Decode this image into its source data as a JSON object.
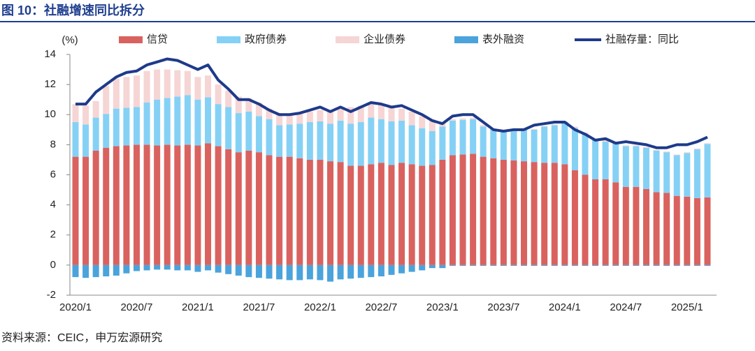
{
  "chart_data": {
    "type": "bar",
    "title": "图 10：社融增速同比拆分",
    "source": "资料来源：CEIC，申万宏源研究",
    "y_label": "(%)",
    "categories": [
      "2020/1",
      null,
      null,
      null,
      null,
      null,
      "2020/7",
      null,
      null,
      null,
      null,
      null,
      "2021/1",
      null,
      null,
      null,
      null,
      null,
      "2021/7",
      null,
      null,
      null,
      null,
      null,
      "2022/1",
      null,
      null,
      null,
      null,
      null,
      "2022/7",
      null,
      null,
      null,
      null,
      null,
      "2023/1",
      null,
      null,
      null,
      null,
      null,
      "2023/7",
      null,
      null,
      null,
      null,
      null,
      "2024/1",
      null,
      null,
      null,
      null,
      null,
      "2024/7",
      null,
      null,
      null,
      null,
      null,
      "2025/1",
      null,
      null
    ],
    "series": [
      {
        "name": "信贷",
        "color": "#d9625f",
        "values": [
          7.2,
          7.2,
          7.6,
          7.8,
          7.9,
          7.95,
          8.0,
          8.0,
          7.95,
          8.0,
          7.95,
          8.0,
          7.95,
          8.1,
          7.9,
          7.7,
          7.5,
          7.6,
          7.5,
          7.3,
          7.2,
          7.2,
          7.1,
          7.0,
          7.0,
          6.9,
          6.85,
          6.6,
          6.6,
          6.7,
          6.8,
          6.65,
          6.8,
          6.7,
          6.6,
          6.65,
          7.0,
          7.3,
          7.35,
          7.4,
          7.2,
          7.1,
          7.0,
          6.95,
          6.9,
          6.85,
          6.8,
          6.8,
          6.7,
          6.3,
          6.0,
          5.7,
          5.7,
          5.5,
          5.2,
          5.2,
          5.05,
          4.85,
          4.8,
          4.6,
          4.55,
          4.45,
          4.5
        ]
      },
      {
        "name": "政府债券",
        "color": "#85d1f5",
        "values": [
          2.3,
          2.15,
          2.2,
          2.25,
          2.5,
          2.5,
          2.5,
          2.8,
          3.05,
          3.1,
          3.25,
          3.3,
          3.05,
          3.05,
          2.8,
          2.8,
          2.6,
          2.6,
          2.4,
          2.4,
          2.1,
          2.15,
          2.3,
          2.5,
          2.55,
          2.5,
          2.75,
          2.8,
          2.9,
          3.1,
          2.9,
          2.9,
          2.8,
          2.6,
          2.5,
          2.25,
          2.2,
          2.3,
          2.3,
          2.3,
          2.0,
          1.9,
          1.9,
          1.95,
          2.1,
          2.15,
          2.4,
          2.5,
          2.8,
          2.8,
          2.7,
          2.6,
          2.5,
          2.6,
          2.7,
          2.7,
          2.75,
          2.75,
          2.7,
          2.7,
          2.9,
          3.25,
          3.55
        ]
      },
      {
        "name": "企业债券",
        "color": "#f6d5d5",
        "values": [
          1.2,
          1.25,
          1.1,
          1.85,
          2.0,
          2.05,
          2.1,
          2.1,
          2.0,
          1.9,
          1.75,
          1.6,
          1.5,
          1.45,
          1.3,
          1.1,
          1.1,
          0.9,
          0.9,
          0.7,
          0.8,
          0.65,
          0.7,
          0.7,
          0.75,
          0.8,
          0.8,
          1.1,
          1.1,
          0.9,
          1.0,
          0.95,
          0.8,
          0.9,
          0.8,
          0.8,
          0.3,
          0.1,
          0.1,
          0.1,
          0.1,
          0.05,
          0.05,
          0.05,
          0.05,
          0.05,
          0.05,
          0.05,
          0.05,
          0.1,
          0.1,
          0.1,
          0.1,
          0.05,
          0.05,
          0.05,
          0.05,
          0.05,
          0.05,
          0.05,
          0.05,
          0.05,
          0.05
        ]
      },
      {
        "name": "表外融资",
        "color": "#4ba3dc",
        "values": [
          -0.8,
          -0.85,
          -0.8,
          -0.75,
          -0.7,
          -0.55,
          -0.4,
          -0.35,
          -0.3,
          -0.3,
          -0.35,
          -0.35,
          -0.45,
          -0.35,
          -0.5,
          -0.6,
          -0.7,
          -0.8,
          -0.85,
          -0.9,
          -0.95,
          -1.0,
          -1.0,
          -0.95,
          -1.0,
          -1.1,
          -0.95,
          -0.9,
          -0.85,
          -0.8,
          -0.75,
          -0.65,
          -0.55,
          -0.45,
          -0.35,
          -0.2,
          -0.2,
          -0.05,
          -0.05,
          -0.05,
          -0.05,
          -0.05,
          -0.05,
          -0.05,
          -0.05,
          -0.05,
          -0.05,
          -0.05,
          -0.05,
          -0.05,
          -0.05,
          -0.05,
          -0.05,
          -0.05,
          -0.05,
          -0.05,
          -0.05,
          -0.05,
          -0.05,
          -0.05,
          -0.05,
          -0.05,
          -0.05
        ]
      },
      {
        "name": "社融存量：同比",
        "color": "#1e3a8a",
        "type": "line",
        "values": [
          10.7,
          10.7,
          11.5,
          12.0,
          12.5,
          12.8,
          12.9,
          13.3,
          13.5,
          13.7,
          13.6,
          13.3,
          13.0,
          13.3,
          12.3,
          11.7,
          11.0,
          11.0,
          10.7,
          10.3,
          10.0,
          10.0,
          10.1,
          10.3,
          10.5,
          10.2,
          10.5,
          10.2,
          10.5,
          10.8,
          10.7,
          10.5,
          10.6,
          10.3,
          10.0,
          9.6,
          9.4,
          9.9,
          10.0,
          10.0,
          9.5,
          9.0,
          8.9,
          9.0,
          9.0,
          9.3,
          9.4,
          9.5,
          9.5,
          9.0,
          8.7,
          8.3,
          8.4,
          8.1,
          8.2,
          8.1,
          8.0,
          7.8,
          7.8,
          8.0,
          8.0,
          8.2,
          8.5
        ]
      }
    ],
    "ylim": [
      -2,
      14
    ],
    "yticks": [
      -2,
      0,
      2,
      4,
      6,
      8,
      10,
      12,
      14
    ],
    "stacked": true
  }
}
